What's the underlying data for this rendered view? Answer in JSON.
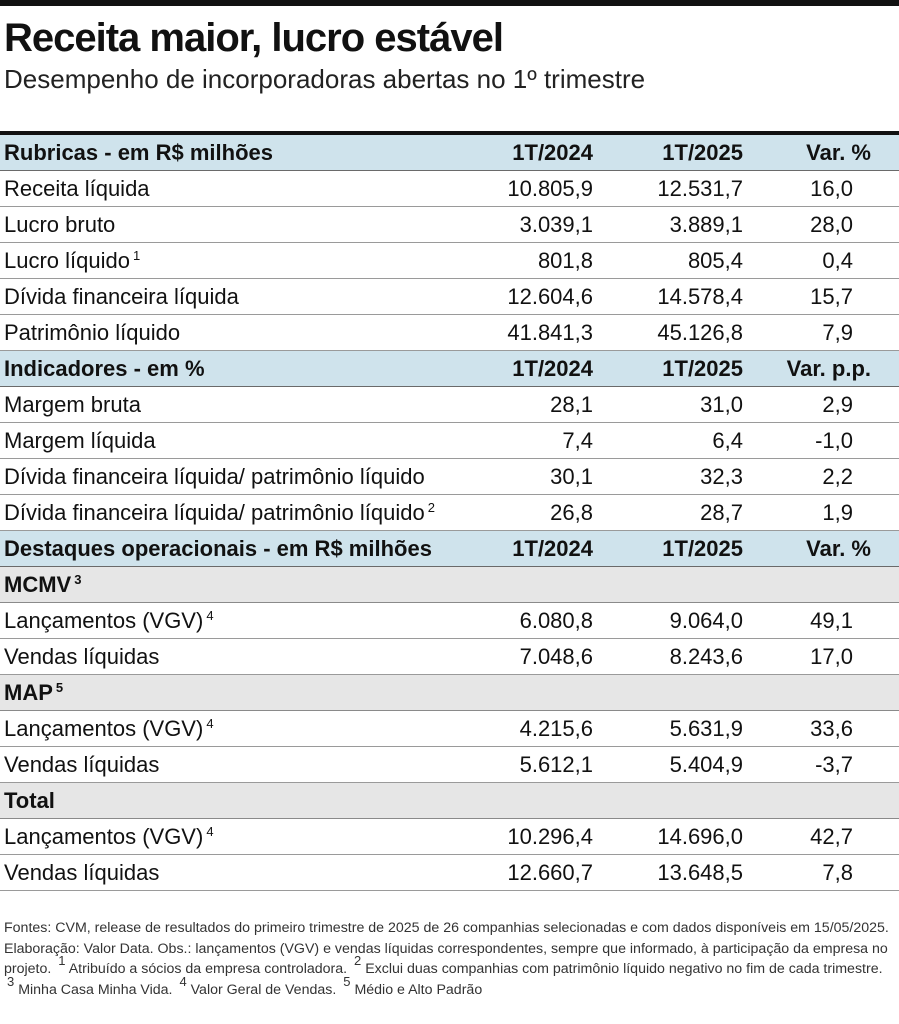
{
  "title": "Receita maior, lucro estável",
  "subtitle": "Desempenho de incorporadoras abertas no 1º trimestre",
  "sections": [
    {
      "header": {
        "label": "Rubricas - em R$ milhões",
        "col_a": "1T/2024",
        "col_b": "1T/2025",
        "col_v": "Var. %"
      },
      "rows": [
        {
          "label": "Receita líquida",
          "sup": "",
          "a": "10.805,9",
          "b": "12.531,7",
          "v": "16,0"
        },
        {
          "label": "Lucro bruto",
          "sup": "",
          "a": "3.039,1",
          "b": "3.889,1",
          "v": "28,0"
        },
        {
          "label": "Lucro líquido",
          "sup": "1",
          "a": "801,8",
          "b": "805,4",
          "v": "0,4"
        },
        {
          "label": "Dívida financeira líquida",
          "sup": "",
          "a": "12.604,6",
          "b": "14.578,4",
          "v": "15,7"
        },
        {
          "label": "Patrimônio líquido",
          "sup": "",
          "a": "41.841,3",
          "b": "45.126,8",
          "v": "7,9"
        }
      ]
    },
    {
      "header": {
        "label": "Indicadores - em %",
        "col_a": "1T/2024",
        "col_b": "1T/2025",
        "col_v": "Var. p.p."
      },
      "rows": [
        {
          "label": "Margem bruta",
          "sup": "",
          "a": "28,1",
          "b": "31,0",
          "v": "2,9"
        },
        {
          "label": "Margem líquida",
          "sup": "",
          "a": "7,4",
          "b": "6,4",
          "v": "-1,0"
        },
        {
          "label": "Dívida financeira líquida/ patrimônio líquido",
          "sup": "",
          "a": "30,1",
          "b": "32,3",
          "v": "2,2"
        },
        {
          "label": "Dívida financeira líquida/ patrimônio líquido",
          "sup": "2",
          "a": "26,8",
          "b": "28,7",
          "v": "1,9"
        }
      ]
    },
    {
      "header": {
        "label": "Destaques operacionais - em R$ milhões",
        "col_a": "1T/2024",
        "col_b": "1T/2025",
        "col_v": "Var. %"
      },
      "groups": [
        {
          "label": "MCMV",
          "sup": "3",
          "rows": [
            {
              "label": "Lançamentos (VGV)",
              "sup": "4",
              "a": "6.080,8",
              "b": "9.064,0",
              "v": "49,1"
            },
            {
              "label": "Vendas líquidas",
              "sup": "",
              "a": "7.048,6",
              "b": "8.243,6",
              "v": "17,0"
            }
          ]
        },
        {
          "label": "MAP",
          "sup": "5",
          "rows": [
            {
              "label": "Lançamentos (VGV)",
              "sup": "4",
              "a": "4.215,6",
              "b": "5.631,9",
              "v": "33,6"
            },
            {
              "label": "Vendas líquidas",
              "sup": "",
              "a": "5.612,1",
              "b": "5.404,9",
              "v": "-3,7"
            }
          ]
        },
        {
          "label": "Total",
          "sup": "",
          "rows": [
            {
              "label": "Lançamentos (VGV)",
              "sup": "4",
              "a": "10.296,4",
              "b": "14.696,0",
              "v": "42,7"
            },
            {
              "label": "Vendas líquidas",
              "sup": "",
              "a": "12.660,7",
              "b": "13.648,5",
              "v": "7,8"
            }
          ]
        }
      ]
    }
  ],
  "footnotes": {
    "t1": "Fontes: CVM, release de resultados do primeiro trimestre de 2025 de 26 companhias selecionadas e com dados disponíveis em 15/05/2025. Elaboração: Valor Data. Obs.: lançamentos (VGV) e vendas líquidas correspondentes, sempre que informado, à participação da empresa no projeto.",
    "s1": "1",
    "t2": "Atribuído a sócios da empresa controladora.",
    "s2": "2",
    "t3": "Exclui duas companhias com patrimônio líquido negativo no fim de cada trimestre.",
    "s3": "3",
    "t4": "Minha Casa Minha Vida.",
    "s4": "4",
    "t5": "Valor Geral de Vendas.",
    "s5": "5",
    "t6": "Médio e Alto Padrão"
  }
}
